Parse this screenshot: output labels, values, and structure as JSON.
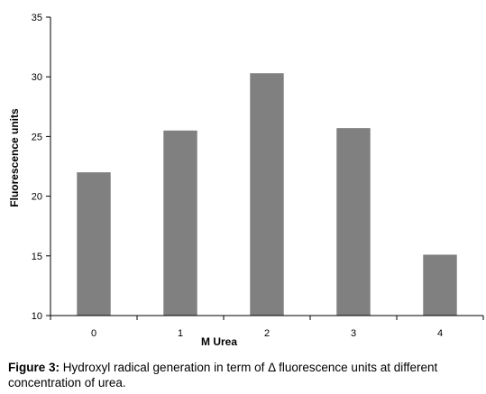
{
  "chart_data": {
    "type": "bar",
    "categories": [
      "0",
      "1",
      "2",
      "3",
      "4"
    ],
    "values": [
      22.0,
      25.5,
      30.3,
      25.7,
      15.1
    ],
    "xlabel": "M Urea",
    "ylabel": "Fluorescence units",
    "ylim": [
      10,
      35
    ],
    "yticks": [
      "10",
      "15",
      "20",
      "25",
      "30",
      "35"
    ],
    "grid": false,
    "legend": "none",
    "bar_color": "#808080"
  },
  "caption": {
    "label": "Figure 3:",
    "text": " Hydroxyl radical generation in term of Δ fluorescence units at different concentration of urea."
  }
}
